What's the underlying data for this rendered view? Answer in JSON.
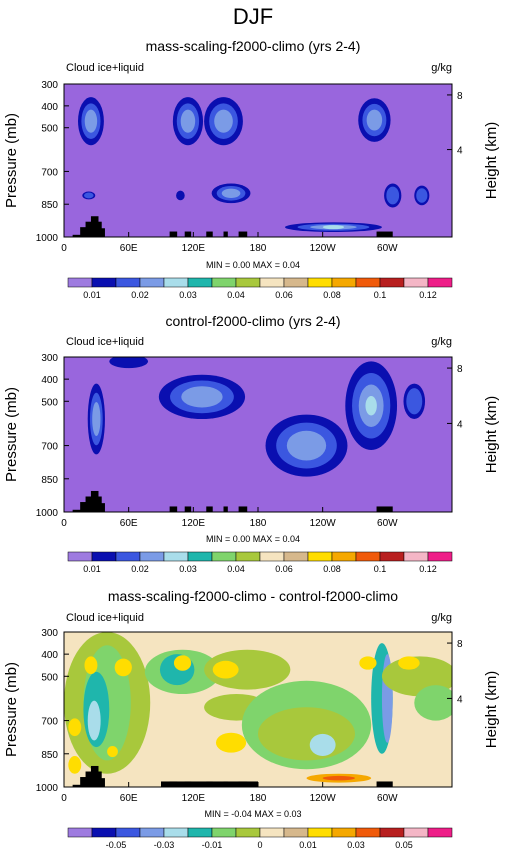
{
  "page_title": "DJF",
  "colors": {
    "background_field": "#9966dd",
    "terrain": "#000000",
    "abs_scale": [
      "#9e7be0",
      "#0a0fb0",
      "#3b57e0",
      "#7b9be6",
      "#a9ddea",
      "#1fb6ac",
      "#7fd46c",
      "#a8c83c",
      "#f5e4c0",
      "#d6b88c",
      "#ffdd00",
      "#f5a800",
      "#f05a0a",
      "#b81f1f",
      "#f4b6c6",
      "#ee1e88"
    ],
    "diff_scale": [
      "#9e7be0",
      "#0a0fb0",
      "#3b57e0",
      "#7b9be6",
      "#a9ddea",
      "#1fb6ac",
      "#7fd46c",
      "#a8c83c",
      "#f5e4c0",
      "#d6b88c",
      "#ffdd00",
      "#f5a800",
      "#f05a0a",
      "#b81f1f",
      "#f4b6c6",
      "#ee1e88"
    ]
  },
  "chart_data": [
    {
      "type": "heatmap",
      "title": "mass-scaling-f2000-climo (yrs 2-4)",
      "left_label": "Cloud ice+liquid",
      "right_label": "g/kg",
      "ylabel": "Pressure (mb)",
      "ylabel_right": "Height (km)",
      "x_ticks": [
        "0",
        "60E",
        "120E",
        "180",
        "120W",
        "60W"
      ],
      "y_ticks": [
        "300",
        "400",
        "500",
        "700",
        "850",
        "1000"
      ],
      "y_right_ticks": [
        "8",
        "4"
      ],
      "stats": "MIN =  0.00  MAX =  0.04",
      "colorbar_labels": [
        "0.01",
        "0.02",
        "0.03",
        "0.04",
        "0.06",
        "0.08",
        "0.1",
        "0.12"
      ],
      "xlim": [
        0,
        360
      ],
      "ylim": [
        1000,
        300
      ]
    },
    {
      "type": "heatmap",
      "title": "control-f2000-climo (yrs 2-4)",
      "left_label": "Cloud ice+liquid",
      "right_label": "g/kg",
      "ylabel": "Pressure (mb)",
      "ylabel_right": "Height (km)",
      "x_ticks": [
        "0",
        "60E",
        "120E",
        "180",
        "120W",
        "60W"
      ],
      "y_ticks": [
        "300",
        "400",
        "500",
        "700",
        "850",
        "1000"
      ],
      "y_right_ticks": [
        "8",
        "4"
      ],
      "stats": "MIN =  0.00  MAX =  0.04",
      "colorbar_labels": [
        "0.01",
        "0.02",
        "0.03",
        "0.04",
        "0.06",
        "0.08",
        "0.1",
        "0.12"
      ],
      "xlim": [
        0,
        360
      ],
      "ylim": [
        1000,
        300
      ]
    },
    {
      "type": "heatmap",
      "title": "mass-scaling-f2000-climo - control-f2000-climo",
      "left_label": "Cloud ice+liquid",
      "right_label": "g/kg",
      "ylabel": "Pressure (mb)",
      "ylabel_right": "Height (km)",
      "x_ticks": [
        "0",
        "60E",
        "120E",
        "180",
        "120W",
        "60W"
      ],
      "y_ticks": [
        "300",
        "400",
        "500",
        "700",
        "850",
        "1000"
      ],
      "y_right_ticks": [
        "8",
        "4"
      ],
      "stats": "MIN = -0.04  MAX =  0.03",
      "colorbar_labels": [
        "-0.05",
        "-0.03",
        "-0.01",
        "0",
        "0.01",
        "0.03",
        "0.05"
      ],
      "xlim": [
        0,
        360
      ],
      "ylim": [
        1000,
        300
      ]
    }
  ]
}
